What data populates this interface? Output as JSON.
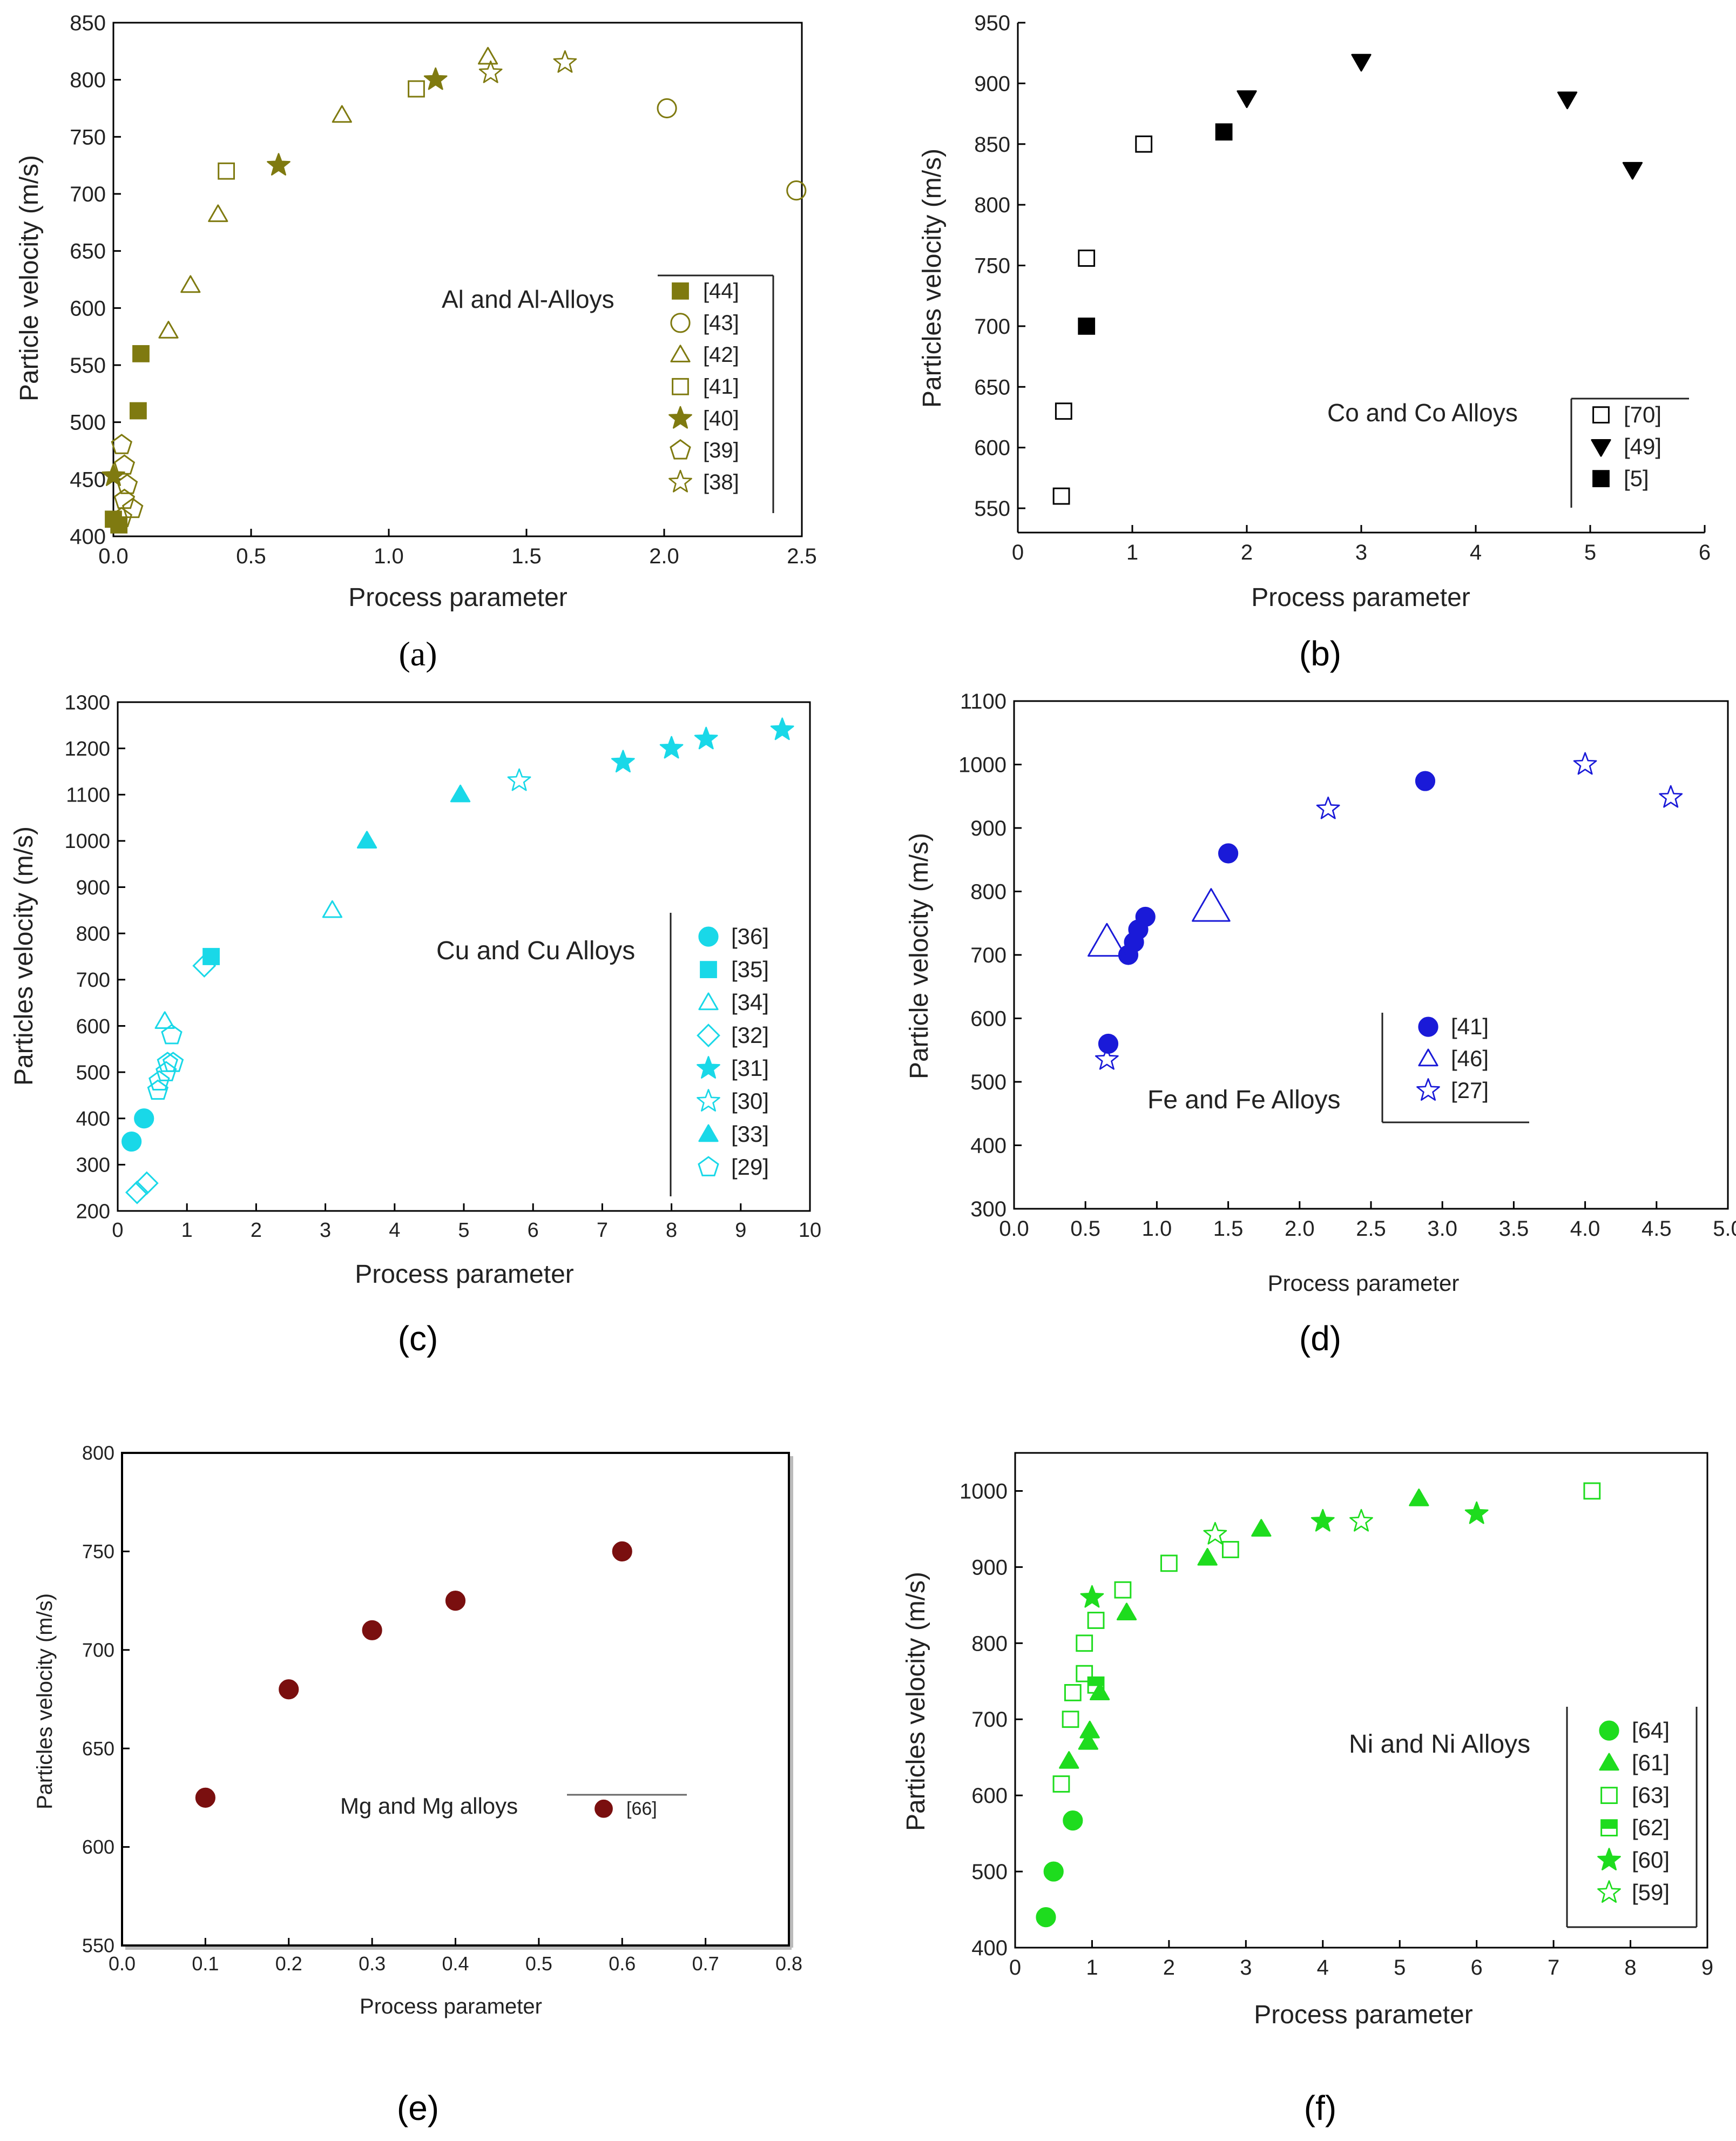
{
  "figure": {
    "panels": [
      {
        "caption_letter": "a",
        "caption": "(a)"
      },
      {
        "caption_letter": "b",
        "caption": "(b)"
      },
      {
        "caption_letter": "c",
        "caption": "(c)"
      },
      {
        "caption_letter": "d",
        "caption": "(d)"
      },
      {
        "caption_letter": "e",
        "caption": "(e)"
      },
      {
        "caption_letter": "f",
        "caption": "(f)"
      }
    ]
  },
  "chart_data": [
    {
      "type": "scatter",
      "title": "Al and Al-Alloys",
      "xlabel": "Process parameter",
      "ylabel": "Particle velocity (m/s)",
      "xlim": [
        0,
        2.5
      ],
      "ylim": [
        400,
        850
      ],
      "xticks": [
        0,
        0.5,
        1,
        1.5,
        2,
        2.5
      ],
      "xtick_labels": [
        "0.0",
        "0.5",
        "1.0",
        "1.5",
        "2.0",
        "2.5"
      ],
      "yticks": [
        400,
        450,
        500,
        550,
        600,
        650,
        700,
        750,
        800,
        850
      ],
      "ytick_labels": [
        "400",
        "450",
        "500",
        "550",
        "600",
        "650",
        "700",
        "750",
        "800",
        "850"
      ],
      "color": "#7f7a10",
      "series": [
        {
          "name": "[44]",
          "marker": "square",
          "filled": true,
          "points": [
            [
              0.1,
              560
            ],
            [
              0.09,
              510
            ],
            [
              0.02,
              410
            ],
            [
              0.0,
              415
            ]
          ]
        },
        {
          "name": "[43]",
          "marker": "circle",
          "filled": false,
          "points": [
            [
              2.01,
              775
            ],
            [
              2.48,
              703
            ]
          ]
        },
        {
          "name": "[42]",
          "marker": "triangle-up",
          "filled": false,
          "points": [
            [
              0.2,
              580
            ],
            [
              0.28,
              620
            ],
            [
              0.38,
              682
            ],
            [
              0.83,
              769
            ],
            [
              1.36,
              820
            ]
          ]
        },
        {
          "name": "[41]",
          "marker": "square",
          "filled": false,
          "points": [
            [
              0.41,
              720
            ],
            [
              1.1,
              792
            ]
          ]
        },
        {
          "name": "[40]",
          "marker": "star",
          "filled": true,
          "points": [
            [
              0.0,
              453
            ],
            [
              0.6,
              725
            ],
            [
              1.17,
              800
            ]
          ]
        },
        {
          "name": "[39]",
          "marker": "pentagon",
          "filled": false,
          "points": [
            [
              0.03,
              480
            ],
            [
              0.04,
              462
            ],
            [
              0.05,
              445
            ],
            [
              0.04,
              432
            ],
            [
              0.07,
              424
            ],
            [
              0.03,
              416
            ]
          ]
        },
        {
          "name": "[38]",
          "marker": "star",
          "filled": false,
          "points": [
            [
              1.37,
              806
            ],
            [
              1.64,
              815
            ]
          ]
        }
      ]
    },
    {
      "type": "scatter",
      "title": "Co and Co Alloys",
      "xlabel": "Process parameter",
      "ylabel": "Particles velocity (m/s)",
      "xlim": [
        0,
        6
      ],
      "ylim": [
        530,
        950
      ],
      "xticks": [
        0,
        1,
        2,
        3,
        4,
        5,
        6
      ],
      "xtick_labels": [
        "0",
        "1",
        "2",
        "3",
        "4",
        "5",
        "6"
      ],
      "yticks": [
        550,
        600,
        650,
        700,
        750,
        800,
        850,
        900,
        950
      ],
      "ytick_labels": [
        "550",
        "600",
        "650",
        "700",
        "750",
        "800",
        "850",
        "900",
        "950"
      ],
      "color": "#000000",
      "series": [
        {
          "name": "[70]",
          "marker": "square",
          "filled": false,
          "points": [
            [
              0.38,
              560
            ],
            [
              0.4,
              630
            ],
            [
              0.6,
              756
            ],
            [
              1.1,
              850
            ]
          ]
        },
        {
          "name": "[49]",
          "marker": "triangle-down",
          "filled": true,
          "points": [
            [
              2.0,
              888
            ],
            [
              3.0,
              918
            ],
            [
              4.8,
              887
            ],
            [
              5.37,
              829
            ]
          ]
        },
        {
          "name": "[5]",
          "marker": "square",
          "filled": true,
          "points": [
            [
              0.6,
              700
            ],
            [
              1.8,
              860
            ]
          ]
        }
      ]
    },
    {
      "type": "scatter",
      "title": "Cu and Cu Alloys",
      "xlabel": "Process parameter",
      "ylabel": "Particles velocity (m/s)",
      "xlim": [
        0,
        10
      ],
      "ylim": [
        200,
        1300
      ],
      "xticks": [
        0,
        1,
        2,
        3,
        4,
        5,
        6,
        7,
        8,
        9,
        10
      ],
      "xtick_labels": [
        "0",
        "1",
        "2",
        "3",
        "4",
        "5",
        "6",
        "7",
        "8",
        "9",
        "10"
      ],
      "yticks": [
        200,
        300,
        400,
        500,
        600,
        700,
        800,
        900,
        1000,
        1100,
        1200,
        1300
      ],
      "ytick_labels": [
        "200",
        "300",
        "400",
        "500",
        "600",
        "700",
        "800",
        "900",
        "1000",
        "1100",
        "1200",
        "1300"
      ],
      "color": "#19d8e8",
      "series": [
        {
          "name": "[36]",
          "marker": "circle",
          "filled": true,
          "points": [
            [
              0.2,
              350
            ],
            [
              0.38,
              400
            ]
          ]
        },
        {
          "name": "[35]",
          "marker": "square",
          "filled": true,
          "points": [
            [
              1.35,
              750
            ]
          ]
        },
        {
          "name": "[34]",
          "marker": "triangle-up",
          "filled": false,
          "points": [
            [
              0.68,
              610
            ],
            [
              3.1,
              850
            ]
          ]
        },
        {
          "name": "[32]",
          "marker": "diamond",
          "filled": false,
          "points": [
            [
              0.28,
              240
            ],
            [
              0.42,
              260
            ],
            [
              1.25,
              730
            ]
          ]
        },
        {
          "name": "[31]",
          "marker": "star",
          "filled": true,
          "points": [
            [
              7.3,
              1170
            ],
            [
              8.0,
              1200
            ],
            [
              8.5,
              1220
            ],
            [
              9.6,
              1240
            ]
          ]
        },
        {
          "name": "[30]",
          "marker": "star",
          "filled": false,
          "points": [
            [
              5.8,
              1130
            ]
          ]
        },
        {
          "name": "[33]",
          "marker": "triangle-up",
          "filled": true,
          "points": [
            [
              3.6,
              1000
            ],
            [
              4.95,
              1100
            ]
          ]
        },
        {
          "name": "[29]",
          "marker": "pentagon",
          "filled": false,
          "points": [
            [
              0.58,
              460
            ],
            [
              0.6,
              480
            ],
            [
              0.7,
              500
            ],
            [
              0.72,
              520
            ],
            [
              0.8,
              520
            ],
            [
              0.78,
              580
            ]
          ]
        }
      ]
    },
    {
      "type": "scatter",
      "title": "Fe and Fe Alloys",
      "xlabel": "Process parameter",
      "ylabel": "Particle velocity (m/s)",
      "xlim": [
        0,
        5
      ],
      "ylim": [
        300,
        1100
      ],
      "xticks": [
        0,
        0.5,
        1,
        1.5,
        2,
        2.5,
        3,
        3.5,
        4,
        4.5,
        5
      ],
      "xtick_labels": [
        "0.0",
        "0.5",
        "1.0",
        "1.5",
        "2.0",
        "2.5",
        "3.0",
        "3.5",
        "4.0",
        "4.5",
        "5.0"
      ],
      "yticks": [
        300,
        400,
        500,
        600,
        700,
        800,
        900,
        1000,
        1100
      ],
      "ytick_labels": [
        "300",
        "400",
        "500",
        "600",
        "700",
        "800",
        "900",
        "1000",
        "1100"
      ],
      "color": "#1a1ad8",
      "series": [
        {
          "name": "[41]",
          "marker": "circle",
          "filled": true,
          "points": [
            [
              0.66,
              560
            ],
            [
              0.8,
              700
            ],
            [
              0.84,
              720
            ],
            [
              0.87,
              740
            ],
            [
              0.92,
              760
            ],
            [
              1.5,
              860
            ],
            [
              2.88,
              974
            ]
          ]
        },
        {
          "name": "[46]",
          "marker": "triangle-up",
          "filled": false,
          "points": [
            [
              0.65,
              720
            ],
            [
              1.38,
              775
            ]
          ]
        },
        {
          "name": "[27]",
          "marker": "star",
          "filled": false,
          "points": [
            [
              0.65,
              535
            ],
            [
              2.2,
              930
            ],
            [
              4.0,
              1000
            ],
            [
              4.6,
              948
            ]
          ]
        }
      ]
    },
    {
      "type": "scatter",
      "title": "Mg and Mg alloys",
      "xlabel": "Process parameter",
      "ylabel": "Particles velocity (m/s)",
      "xlim": [
        0,
        0.8
      ],
      "ylim": [
        550,
        800
      ],
      "xticks": [
        0,
        0.1,
        0.2,
        0.3,
        0.4,
        0.5,
        0.6,
        0.7,
        0.8
      ],
      "xtick_labels": [
        "0.0",
        "0.1",
        "0.2",
        "0.3",
        "0.4",
        "0.5",
        "0.6",
        "0.7",
        "0.8"
      ],
      "yticks": [
        550,
        600,
        650,
        700,
        750,
        800
      ],
      "ytick_labels": [
        "550",
        "600",
        "650",
        "700",
        "750",
        "800"
      ],
      "color": "#7a0f0f",
      "series": [
        {
          "name": "[66]",
          "marker": "circle",
          "filled": true,
          "points": [
            [
              0.1,
              625
            ],
            [
              0.2,
              680
            ],
            [
              0.3,
              710
            ],
            [
              0.4,
              725
            ],
            [
              0.6,
              750
            ]
          ]
        }
      ]
    },
    {
      "type": "scatter",
      "title": "Ni and Ni Alloys",
      "xlabel": "Process parameter",
      "ylabel": "Particles velocity (m/s)",
      "xlim": [
        0,
        9
      ],
      "ylim": [
        400,
        1050
      ],
      "xticks": [
        0,
        1,
        2,
        3,
        4,
        5,
        6,
        7,
        8,
        9
      ],
      "xtick_labels": [
        "0",
        "1",
        "2",
        "3",
        "4",
        "5",
        "6",
        "7",
        "8",
        "9"
      ],
      "yticks": [
        400,
        500,
        600,
        700,
        800,
        900,
        1000
      ],
      "ytick_labels": [
        "400",
        "500",
        "600",
        "700",
        "800",
        "900",
        "1000"
      ],
      "color": "#1edc1e",
      "series": [
        {
          "name": "[64]",
          "marker": "circle",
          "filled": true,
          "points": [
            [
              0.4,
              440
            ],
            [
              0.5,
              500
            ],
            [
              0.75,
              567
            ]
          ]
        },
        {
          "name": "[61]",
          "marker": "triangle-up",
          "filled": true,
          "points": [
            [
              0.7,
              645
            ],
            [
              0.95,
              670
            ],
            [
              0.97,
              685
            ],
            [
              1.1,
              735
            ],
            [
              1.45,
              840
            ],
            [
              2.5,
              912
            ],
            [
              3.2,
              950
            ],
            [
              5.25,
              990
            ]
          ]
        },
        {
          "name": "[63]",
          "marker": "square",
          "filled": false,
          "points": [
            [
              0.6,
              615
            ],
            [
              0.72,
              700
            ],
            [
              0.75,
              735
            ],
            [
              0.9,
              760
            ],
            [
              0.9,
              800
            ],
            [
              1.05,
              830
            ],
            [
              1.4,
              870
            ],
            [
              2.0,
              905
            ],
            [
              2.8,
              923
            ],
            [
              7.5,
              1000
            ]
          ]
        },
        {
          "name": "[62]",
          "marker": "square-half",
          "filled": true,
          "points": [
            [
              1.05,
              745
            ]
          ]
        },
        {
          "name": "[60]",
          "marker": "star",
          "filled": true,
          "points": [
            [
              1.0,
              860
            ],
            [
              4.0,
              960
            ],
            [
              6.0,
              970
            ]
          ]
        },
        {
          "name": "[59]",
          "marker": "star",
          "filled": false,
          "points": [
            [
              2.6,
              943
            ],
            [
              4.5,
              960
            ]
          ]
        }
      ]
    }
  ]
}
